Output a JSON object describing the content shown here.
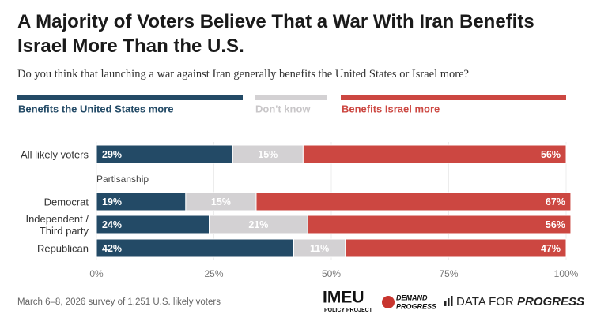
{
  "chart_data": {
    "type": "stacked-bar-horizontal",
    "title": "A Majority of Voters Believe That a War With Iran Benefits Israel More Than the U.S.",
    "subtitle": "Do you think that launching a war against Iran generally benefits the United States or Israel more?",
    "categories": [
      "All likely voters",
      "Democrat",
      "Independent / Third party",
      "Republican"
    ],
    "annotation": "Partisanship",
    "series": [
      {
        "name": "Benefits the United States more",
        "color": "#234a66",
        "values": [
          29,
          19,
          24,
          42
        ],
        "value_labels": [
          "29%",
          "19%",
          "24%",
          "42%"
        ]
      },
      {
        "name": "Don't know",
        "color": "#d3d1d3",
        "values": [
          15,
          15,
          21,
          11
        ],
        "value_labels": [
          "15%",
          "15%",
          "21%",
          "11%"
        ]
      },
      {
        "name": "Benefits Israel more",
        "color": "#cc4741",
        "values": [
          56,
          67,
          56,
          47
        ],
        "value_labels": [
          "56%",
          "67%",
          "56%",
          "47%"
        ]
      }
    ],
    "xlim": [
      0,
      100
    ],
    "xticks": [
      {
        "value": 0,
        "label": "0%"
      },
      {
        "value": 25,
        "label": "25%"
      },
      {
        "value": 50,
        "label": "50%"
      },
      {
        "value": 75,
        "label": "75%"
      },
      {
        "value": 100,
        "label": "100%"
      }
    ],
    "grid": true,
    "source": "March 6–8, 2026 survey of 1,251 U.S. likely voters",
    "logos": {
      "imeu": "IMEU",
      "imeu_sub": "POLICY PROJECT",
      "demand_1": "DEMAND",
      "demand_2": "PROGRESS",
      "dfp_1": "DATA FOR",
      "dfp_2": "PROGRESS"
    }
  }
}
